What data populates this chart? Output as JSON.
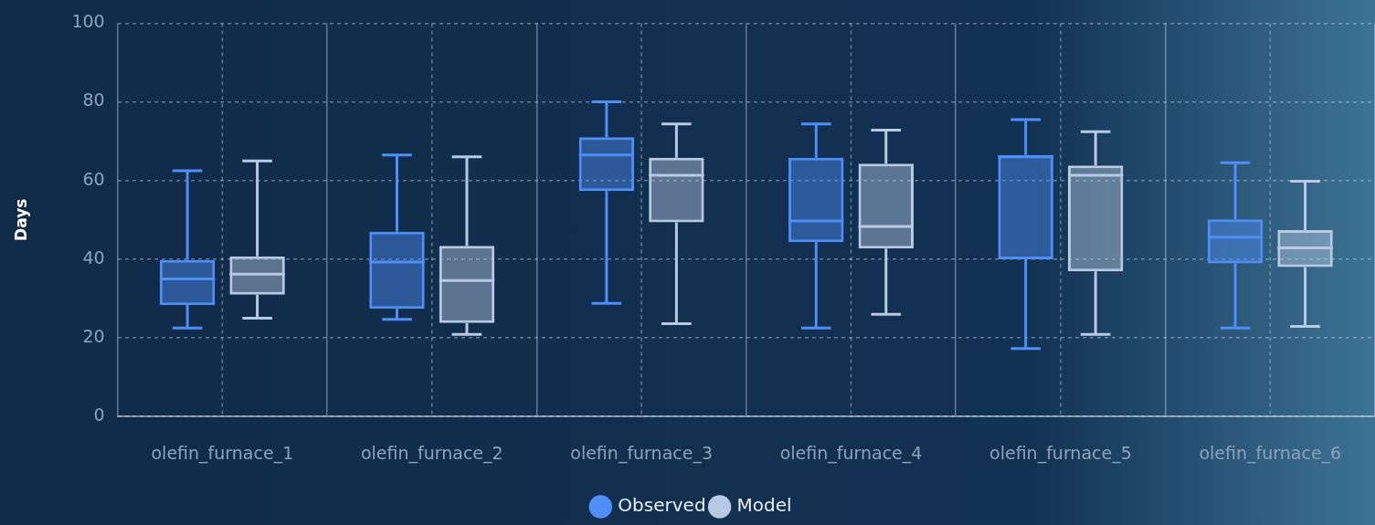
{
  "chart_data": {
    "type": "box",
    "ylabel": "Days",
    "categories": [
      "olefin_furnace_1",
      "olefin_furnace_2",
      "olefin_furnace_3",
      "olefin_furnace_4",
      "olefin_furnace_5",
      "olefin_furnace_6"
    ],
    "series": [
      {
        "name": "Observed",
        "color": "#4f8ef7",
        "boxes": [
          {
            "low": 22.5,
            "q1": 28.3,
            "median": 35,
            "q3": 39.8,
            "high": 62.5
          },
          {
            "low": 24.7,
            "q1": 27.4,
            "median": 39.3,
            "q3": 47,
            "high": 66.5
          },
          {
            "low": 28.8,
            "q1": 57.3,
            "median": 66.5,
            "q3": 71,
            "high": 80
          },
          {
            "low": 22.5,
            "q1": 44.3,
            "median": 49.7,
            "q3": 65.8,
            "high": 74.4
          },
          {
            "low": 17.3,
            "q1": 40,
            "median": 66,
            "q3": 66.5,
            "high": 75.5
          },
          {
            "low": 22.5,
            "q1": 38.9,
            "median": 45.6,
            "q3": 50.1,
            "high": 64.5
          }
        ]
      },
      {
        "name": "Model",
        "color": "#b8c9e3",
        "boxes": [
          {
            "low": 25,
            "q1": 31,
            "median": 36.2,
            "q3": 40.7,
            "high": 65
          },
          {
            "low": 20.9,
            "q1": 23.8,
            "median": 34.6,
            "q3": 43.4,
            "high": 66
          },
          {
            "low": 23.6,
            "q1": 49.4,
            "median": 61.3,
            "q3": 65.8,
            "high": 74.4
          },
          {
            "low": 26,
            "q1": 42.7,
            "median": 48.3,
            "q3": 64.3,
            "high": 72.8
          },
          {
            "low": 20.9,
            "q1": 36.9,
            "median": 61.3,
            "q3": 63.8,
            "high": 72.4
          },
          {
            "low": 22.9,
            "q1": 38,
            "median": 42.9,
            "q3": 47.4,
            "high": 59.8
          }
        ]
      }
    ],
    "ylim": [
      0,
      100
    ],
    "yticks": [
      0,
      20,
      40,
      60,
      80,
      100
    ],
    "grid": true,
    "legend": "bottom"
  }
}
